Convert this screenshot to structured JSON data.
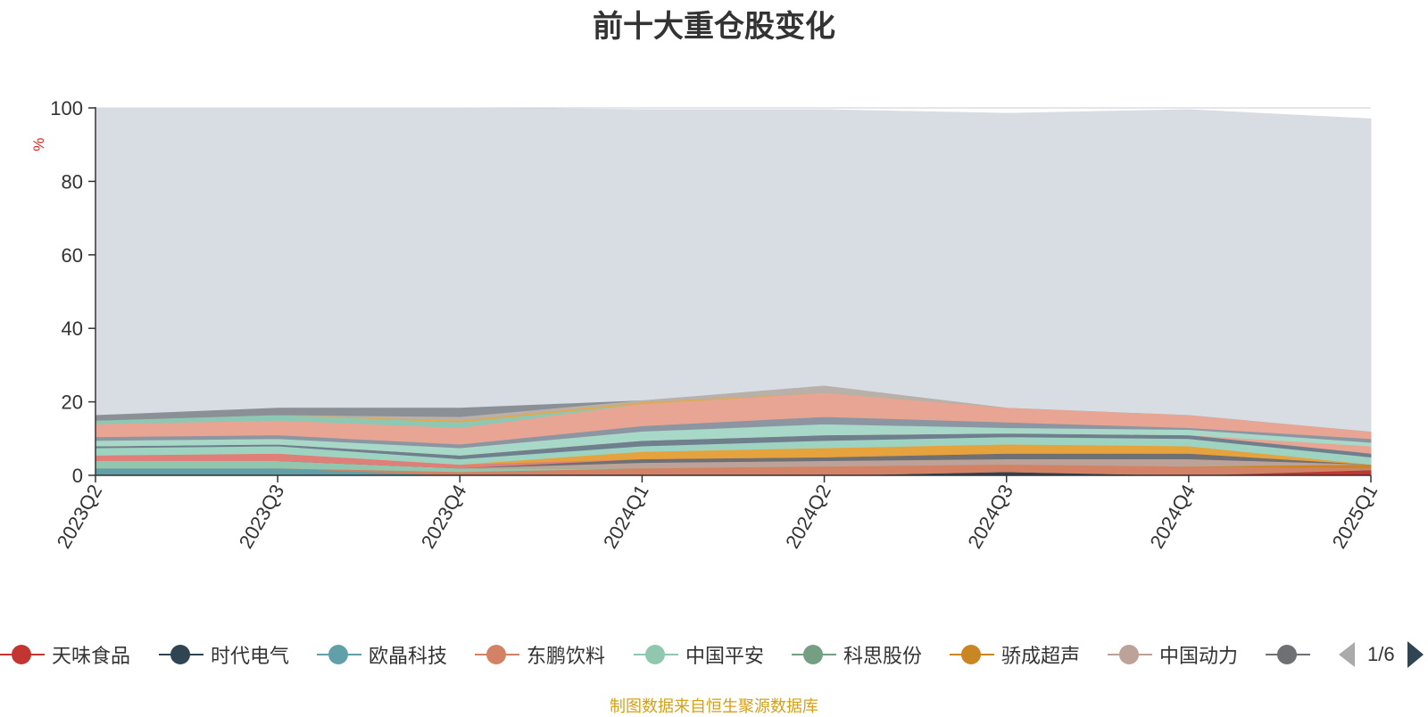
{
  "chart_data": {
    "type": "area",
    "stacked": true,
    "title": "前十大重仓股变化",
    "ylabel": "%",
    "ylim": [
      0,
      100
    ],
    "yticks": [
      0,
      20,
      40,
      60,
      80,
      100
    ],
    "categories": [
      "2023Q2",
      "2023Q3",
      "2023Q4",
      "2024Q1",
      "2024Q2",
      "2024Q3",
      "2024Q4",
      "2025Q1"
    ],
    "series": [
      {
        "name": "天味食品",
        "color": "#c23531",
        "values": [
          0,
          0,
          0,
          0,
          0,
          0,
          0,
          1.5
        ]
      },
      {
        "name": "时代电气",
        "color": "#2f4554",
        "values": [
          0,
          0,
          0,
          0,
          0,
          1,
          0,
          0
        ]
      },
      {
        "name": "欧晶科技",
        "color": "#61a0a8",
        "values": [
          2,
          2,
          0,
          0,
          0,
          0,
          0,
          0
        ]
      },
      {
        "name": "东鹏饮料",
        "color": "#d48265",
        "values": [
          0,
          0,
          1,
          2,
          2.5,
          2,
          2.5,
          0.5
        ]
      },
      {
        "name": "中国平安",
        "color": "#91c7ae",
        "values": [
          2,
          2,
          1,
          0,
          0,
          0,
          0,
          0
        ]
      },
      {
        "name": "科思股份",
        "color": "#749f83",
        "values": [
          0,
          0,
          0,
          0,
          0,
          0,
          0,
          0
        ]
      },
      {
        "name": "骄成超声",
        "color": "#ca8622",
        "values": [
          0,
          0,
          0,
          0,
          0,
          0,
          0,
          1
        ]
      },
      {
        "name": "中国动力",
        "color": "#bda29a",
        "values": [
          0,
          0,
          0,
          1.5,
          1.5,
          1.5,
          2,
          0
        ]
      },
      {
        "name": "",
        "color": "#6e7074",
        "values": [
          0,
          0,
          0,
          1,
          1,
          1.5,
          1.5,
          0
        ]
      },
      {
        "name": "",
        "color": "#e07f7a",
        "values": [
          1.5,
          2,
          1,
          0,
          0,
          0,
          0,
          0
        ]
      },
      {
        "name": "",
        "color": "#e6a23c",
        "values": [
          0,
          0,
          0,
          2,
          2.5,
          2.5,
          2,
          0
        ]
      },
      {
        "name": "",
        "color": "#9ed3c1",
        "values": [
          2,
          2,
          1.5,
          1.5,
          2,
          2,
          2,
          2
        ]
      },
      {
        "name": "",
        "color": "#6f7f8e",
        "values": [
          0.5,
          0.5,
          1,
          1.5,
          1.5,
          1,
          1,
          1
        ]
      },
      {
        "name": "",
        "color": "#e8a593",
        "values": [
          0,
          0,
          0,
          0,
          0,
          0,
          0,
          2
        ]
      },
      {
        "name": "",
        "color": "#a8d8c8",
        "values": [
          1.5,
          1.5,
          2,
          2.5,
          3,
          1.5,
          1.5,
          1
        ]
      },
      {
        "name": "",
        "color": "#8b96a2",
        "values": [
          1,
          1,
          1,
          1.5,
          2,
          1.5,
          0.5,
          1
        ]
      },
      {
        "name": "",
        "color": "#e8a593",
        "values": [
          3.5,
          4,
          4.5,
          6,
          6.5,
          4,
          3.5,
          2
        ]
      },
      {
        "name": "",
        "color": "#8cc8b4",
        "values": [
          1,
          1.5,
          1.5,
          0,
          0,
          0,
          0,
          0
        ]
      },
      {
        "name": "",
        "color": "#e2a94e",
        "values": [
          0,
          0,
          0.5,
          0.5,
          0,
          0,
          0,
          0
        ]
      },
      {
        "name": "",
        "color": "#b9b0aa",
        "values": [
          0,
          0,
          1,
          0.5,
          2,
          0,
          0,
          0
        ]
      },
      {
        "name": "",
        "color": "#8b8f96",
        "values": [
          1.5,
          2,
          2.5,
          0,
          0,
          0,
          0,
          0
        ]
      },
      {
        "name": "",
        "color": "#d8dce3",
        "values": [
          83.5,
          81.5,
          81.5,
          79,
          75,
          80,
          83,
          85
        ]
      }
    ]
  },
  "legend": {
    "items": [
      {
        "label": "天味食品",
        "color": "#c23531"
      },
      {
        "label": "时代电气",
        "color": "#2f4554"
      },
      {
        "label": "欧晶科技",
        "color": "#61a0a8"
      },
      {
        "label": "东鹏饮料",
        "color": "#d48265"
      },
      {
        "label": "中国平安",
        "color": "#91c7ae"
      },
      {
        "label": "科思股份",
        "color": "#749f83"
      },
      {
        "label": "骄成超声",
        "color": "#ca8622"
      },
      {
        "label": "中国动力",
        "color": "#bda29a"
      },
      {
        "label": "",
        "color": "#6e7074"
      }
    ],
    "page": "1/6"
  },
  "source": "制图数据来自恒生聚源数据库"
}
